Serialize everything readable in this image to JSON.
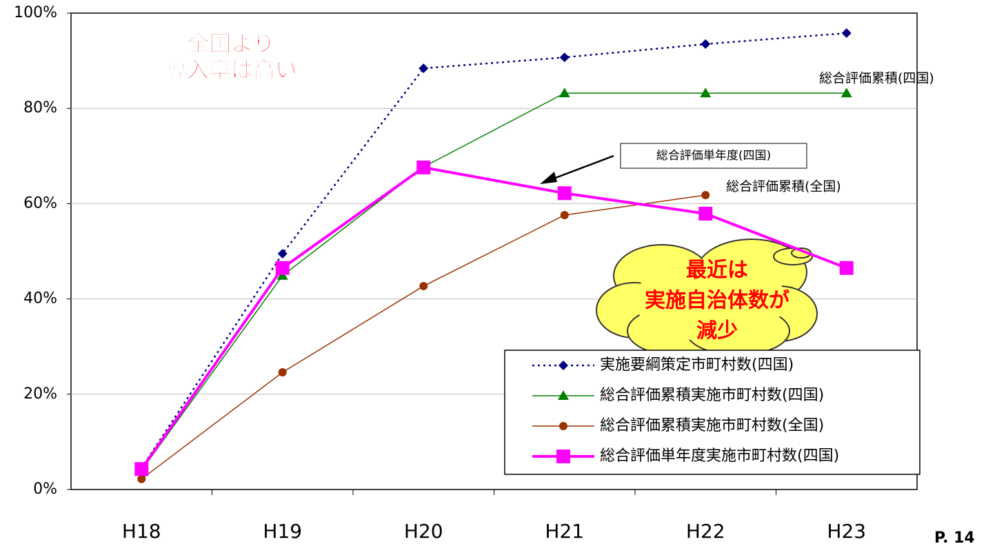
{
  "chart_data": {
    "type": "line",
    "categories": [
      "H18",
      "H19",
      "H20",
      "H21",
      "H22",
      "H23"
    ],
    "series": [
      {
        "name": "実施要綱策定市町村数(四国)",
        "color": "#000080",
        "marker": "diamond",
        "dashed": true,
        "line_width": 2.5,
        "values": [
          4.5,
          49.5,
          88.4,
          90.7,
          93.5,
          95.8
        ]
      },
      {
        "name": "総合評価累積実施市町村数(四国)",
        "color": "#008000",
        "marker": "triangle",
        "dashed": false,
        "line_width": 1.5,
        "values": [
          4,
          44.9,
          67.7,
          83.2,
          83.2,
          83.2
        ]
      },
      {
        "name": "総合評価累積実施市町村数(全国)",
        "color": "#993300",
        "marker": "circle",
        "dashed": false,
        "line_width": 1.5,
        "values": [
          2.2,
          24.6,
          42.7,
          57.6,
          61.8,
          null
        ]
      },
      {
        "name": "総合評価単年度実施市町村数(四国)",
        "color": "#ff00ff",
        "marker": "square",
        "dashed": false,
        "line_width": 4,
        "values": [
          4.3,
          46.5,
          67.6,
          62.2,
          57.9,
          46.5
        ]
      }
    ],
    "ylim": [
      0,
      100
    ],
    "yticks": [
      {
        "value": 0,
        "label": "0%"
      },
      {
        "value": 20,
        "label": "20%"
      },
      {
        "value": 40,
        "label": "40%"
      },
      {
        "value": 60,
        "label": "60%"
      },
      {
        "value": 80,
        "label": "80%"
      },
      {
        "value": 100,
        "label": "100%"
      }
    ],
    "grid": true,
    "legend": "bottom-right",
    "annotations": [
      {
        "lines": [
          "全国より",
          "導入率は高い"
        ]
      },
      {
        "lines": [
          "総合評価累積(四国)"
        ]
      },
      {
        "lines": [
          "総合評価単年度(四国)"
        ]
      },
      {
        "lines": [
          "総合評価累積(全国)"
        ]
      },
      {
        "lines": [
          "最近は",
          "実施自治体数が",
          "減少"
        ]
      }
    ],
    "page_label": "P. 14"
  }
}
